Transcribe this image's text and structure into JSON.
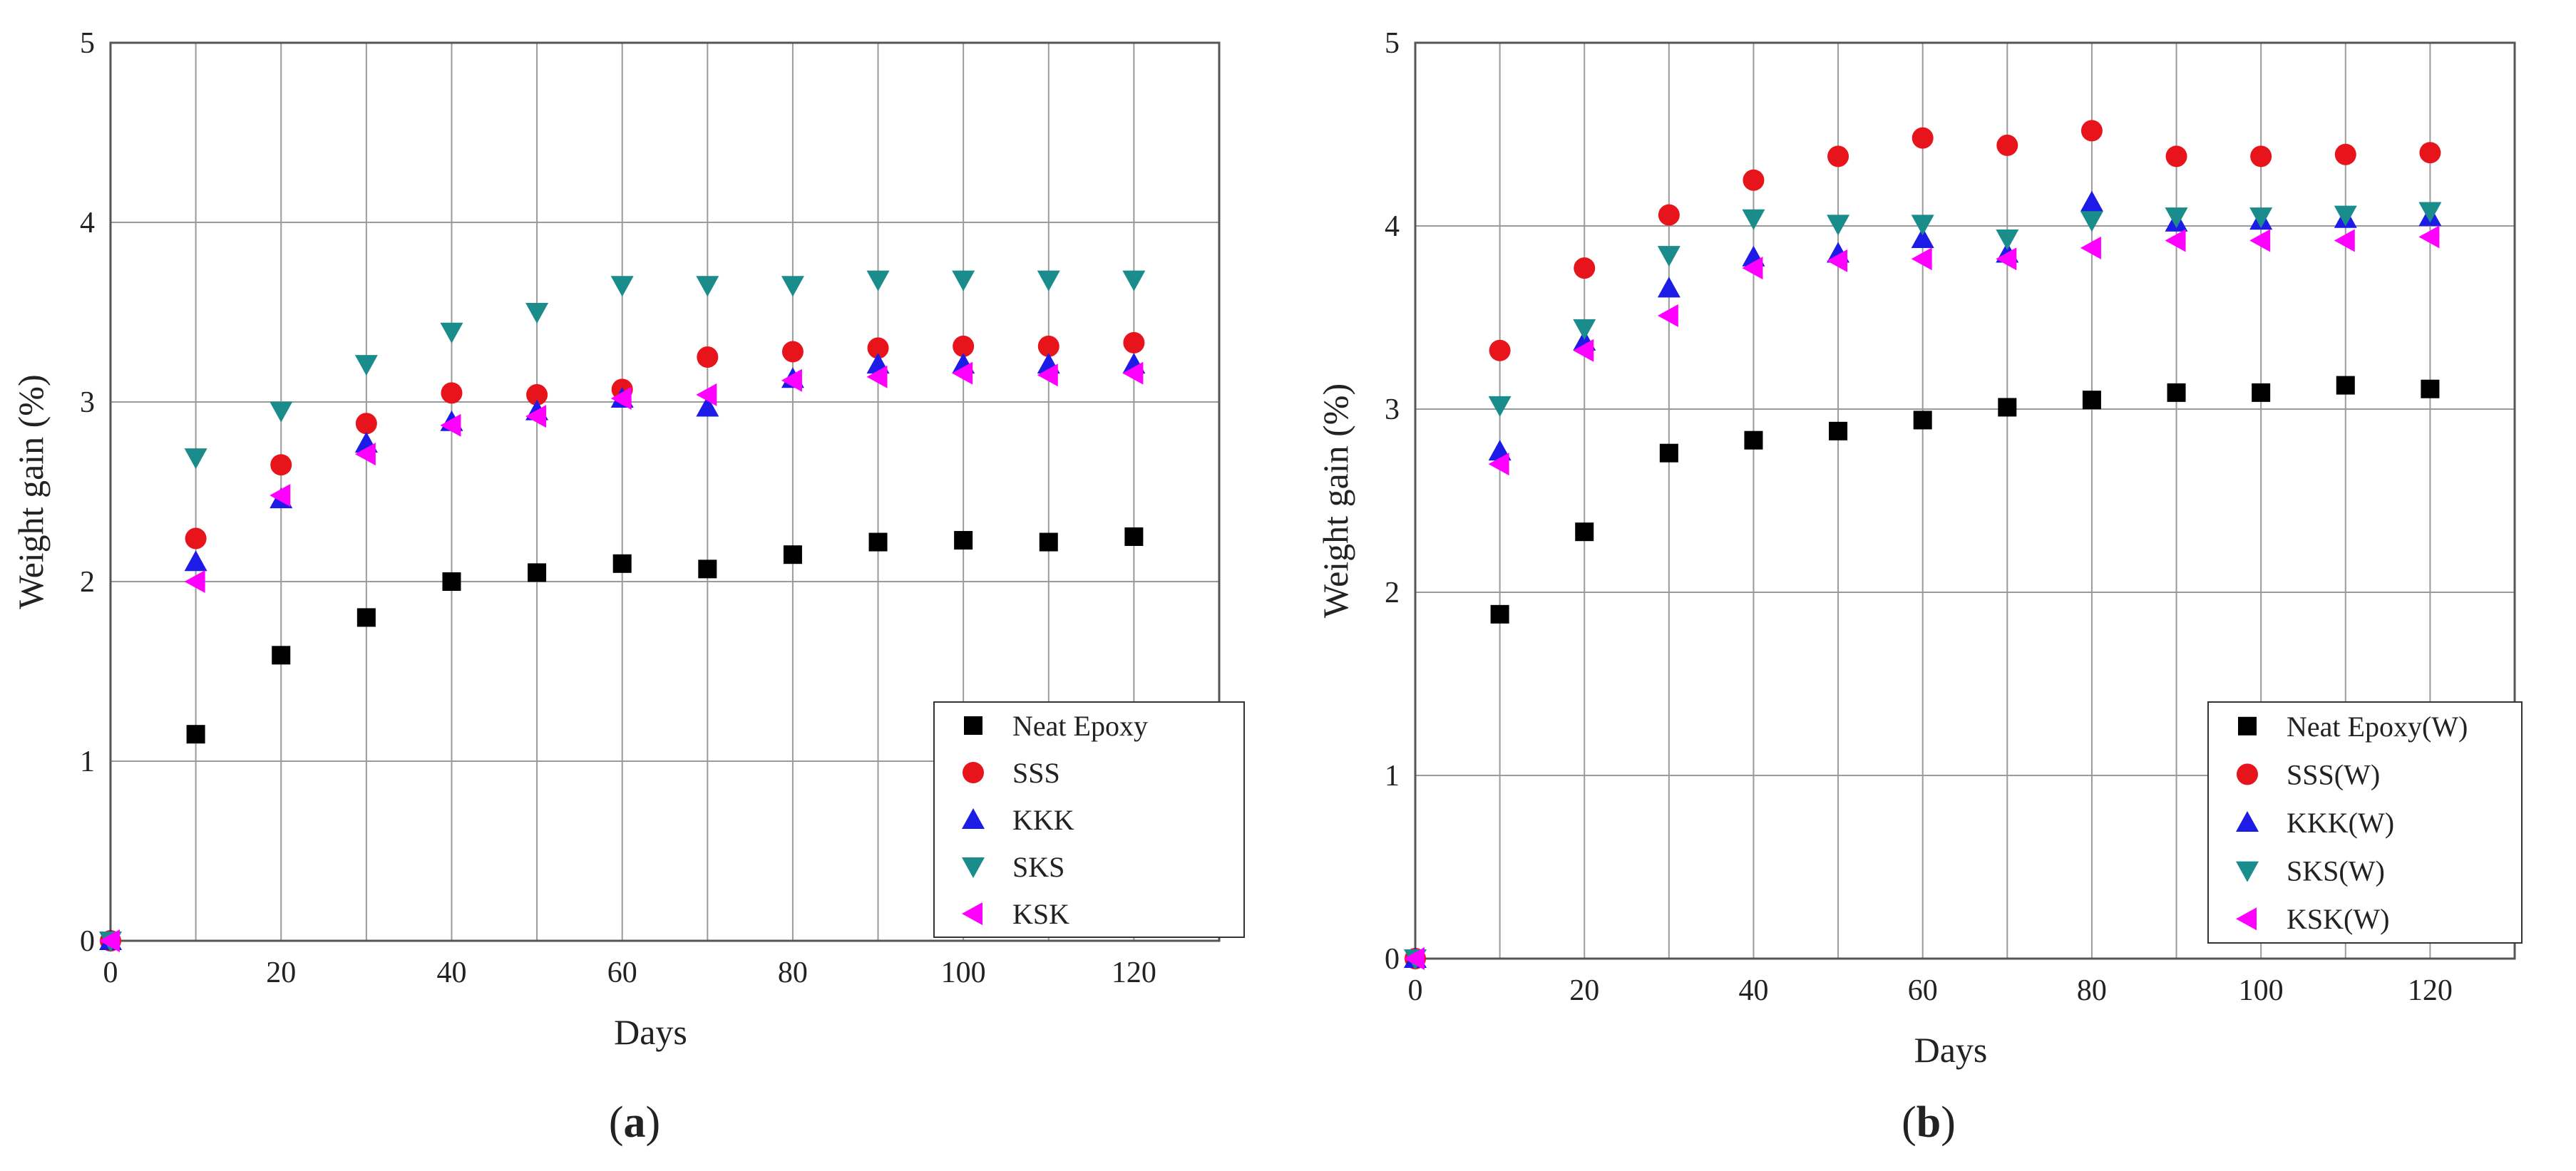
{
  "chart_data": [
    {
      "type": "scatter",
      "panel_label": "(a)",
      "panel_label_parts": [
        "(",
        "a",
        ")"
      ],
      "xlabel": "Days",
      "ylabel": "Weight gain (%)",
      "xlim": [
        0,
        130
      ],
      "ylim": [
        0,
        5
      ],
      "xticks": [
        0,
        20,
        40,
        60,
        80,
        100,
        120
      ],
      "yticks": [
        0,
        1,
        2,
        3,
        4,
        5
      ],
      "x_gridlines": [
        10,
        20,
        30,
        40,
        50,
        60,
        70,
        80,
        90,
        100,
        110,
        120
      ],
      "y_gridlines": [
        1,
        2,
        3,
        4
      ],
      "grid": true,
      "legend_position": "bottom-right",
      "series": [
        {
          "name": "Neat Epoxy",
          "marker": "square",
          "color": "#000000",
          "x": [
            0,
            10,
            20,
            30,
            40,
            50,
            60,
            70,
            80,
            90,
            100,
            110,
            120
          ],
          "values": [
            0,
            1.15,
            1.59,
            1.8,
            2.0,
            2.05,
            2.1,
            2.07,
            2.15,
            2.22,
            2.23,
            2.22,
            2.25
          ]
        },
        {
          "name": "SSS",
          "marker": "circle",
          "color": "#e8141c",
          "x": [
            0,
            10,
            20,
            30,
            40,
            50,
            60,
            70,
            80,
            90,
            100,
            110,
            120
          ],
          "values": [
            0,
            2.24,
            2.65,
            2.88,
            3.05,
            3.04,
            3.07,
            3.25,
            3.28,
            3.3,
            3.31,
            3.31,
            3.33
          ]
        },
        {
          "name": "KKK",
          "marker": "triangle-up",
          "color": "#1c1ce6",
          "x": [
            0,
            10,
            20,
            30,
            40,
            50,
            60,
            70,
            80,
            90,
            100,
            110,
            120
          ],
          "values": [
            0,
            2.11,
            2.46,
            2.77,
            2.89,
            2.95,
            3.02,
            2.97,
            3.13,
            3.21,
            3.21,
            3.21,
            3.21
          ]
        },
        {
          "name": "SKS",
          "marker": "triangle-down",
          "color": "#1a8c8c",
          "x": [
            0,
            10,
            20,
            30,
            40,
            50,
            60,
            70,
            80,
            90,
            100,
            110,
            120
          ],
          "values": [
            0,
            2.69,
            2.95,
            3.21,
            3.39,
            3.5,
            3.65,
            3.65,
            3.65,
            3.68,
            3.68,
            3.68,
            3.68
          ]
        },
        {
          "name": "KSK",
          "marker": "triangle-left",
          "color": "#ff00ff",
          "x": [
            0,
            10,
            20,
            30,
            40,
            50,
            60,
            70,
            80,
            90,
            100,
            110,
            120
          ],
          "values": [
            0,
            2.0,
            2.48,
            2.71,
            2.87,
            2.92,
            3.02,
            3.04,
            3.12,
            3.14,
            3.16,
            3.15,
            3.16
          ]
        }
      ]
    },
    {
      "type": "scatter",
      "panel_label": "(b)",
      "panel_label_parts": [
        "(",
        "b",
        ")"
      ],
      "xlabel": "Days",
      "ylabel": "Weight gain (%)",
      "xlim": [
        0,
        130
      ],
      "ylim": [
        0,
        5
      ],
      "xticks": [
        0,
        20,
        40,
        60,
        80,
        100,
        120
      ],
      "yticks": [
        0,
        1,
        2,
        3,
        4,
        5
      ],
      "x_gridlines": [
        10,
        20,
        30,
        40,
        50,
        60,
        70,
        80,
        90,
        100,
        110,
        120
      ],
      "y_gridlines": [
        1,
        2,
        3,
        4
      ],
      "grid": true,
      "legend_position": "bottom-right",
      "series": [
        {
          "name": "Neat Epoxy(W)",
          "marker": "square",
          "color": "#000000",
          "x": [
            0,
            10,
            20,
            30,
            40,
            50,
            60,
            70,
            80,
            90,
            100,
            110,
            120
          ],
          "values": [
            0,
            1.88,
            2.33,
            2.76,
            2.83,
            2.88,
            2.94,
            3.01,
            3.05,
            3.09,
            3.09,
            3.13,
            3.11
          ]
        },
        {
          "name": "SSS(W)",
          "marker": "circle",
          "color": "#e8141c",
          "x": [
            0,
            10,
            20,
            30,
            40,
            50,
            60,
            70,
            80,
            90,
            100,
            110,
            120
          ],
          "values": [
            0,
            3.32,
            3.77,
            4.06,
            4.25,
            4.38,
            4.48,
            4.44,
            4.52,
            4.38,
            4.38,
            4.39,
            4.4
          ]
        },
        {
          "name": "KKK(W)",
          "marker": "triangle-up",
          "color": "#1c1ce6",
          "x": [
            0,
            10,
            20,
            30,
            40,
            50,
            60,
            70,
            80,
            90,
            100,
            110,
            120
          ],
          "values": [
            0,
            2.77,
            3.37,
            3.66,
            3.83,
            3.85,
            3.93,
            3.85,
            4.13,
            4.02,
            4.03,
            4.04,
            4.05
          ]
        },
        {
          "name": "SKS(W)",
          "marker": "triangle-down",
          "color": "#1a8c8c",
          "x": [
            0,
            10,
            20,
            30,
            40,
            50,
            60,
            70,
            80,
            90,
            100,
            110,
            120
          ],
          "values": [
            0,
            3.02,
            3.44,
            3.84,
            4.04,
            4.01,
            4.01,
            3.93,
            4.03,
            4.05,
            4.05,
            4.06,
            4.08
          ]
        },
        {
          "name": "KSK(W)",
          "marker": "triangle-left",
          "color": "#ff00ff",
          "x": [
            0,
            10,
            20,
            30,
            40,
            50,
            60,
            70,
            80,
            90,
            100,
            110,
            120
          ],
          "values": [
            0,
            2.7,
            3.32,
            3.51,
            3.77,
            3.81,
            3.82,
            3.82,
            3.88,
            3.92,
            3.92,
            3.92,
            3.94
          ]
        }
      ]
    }
  ]
}
